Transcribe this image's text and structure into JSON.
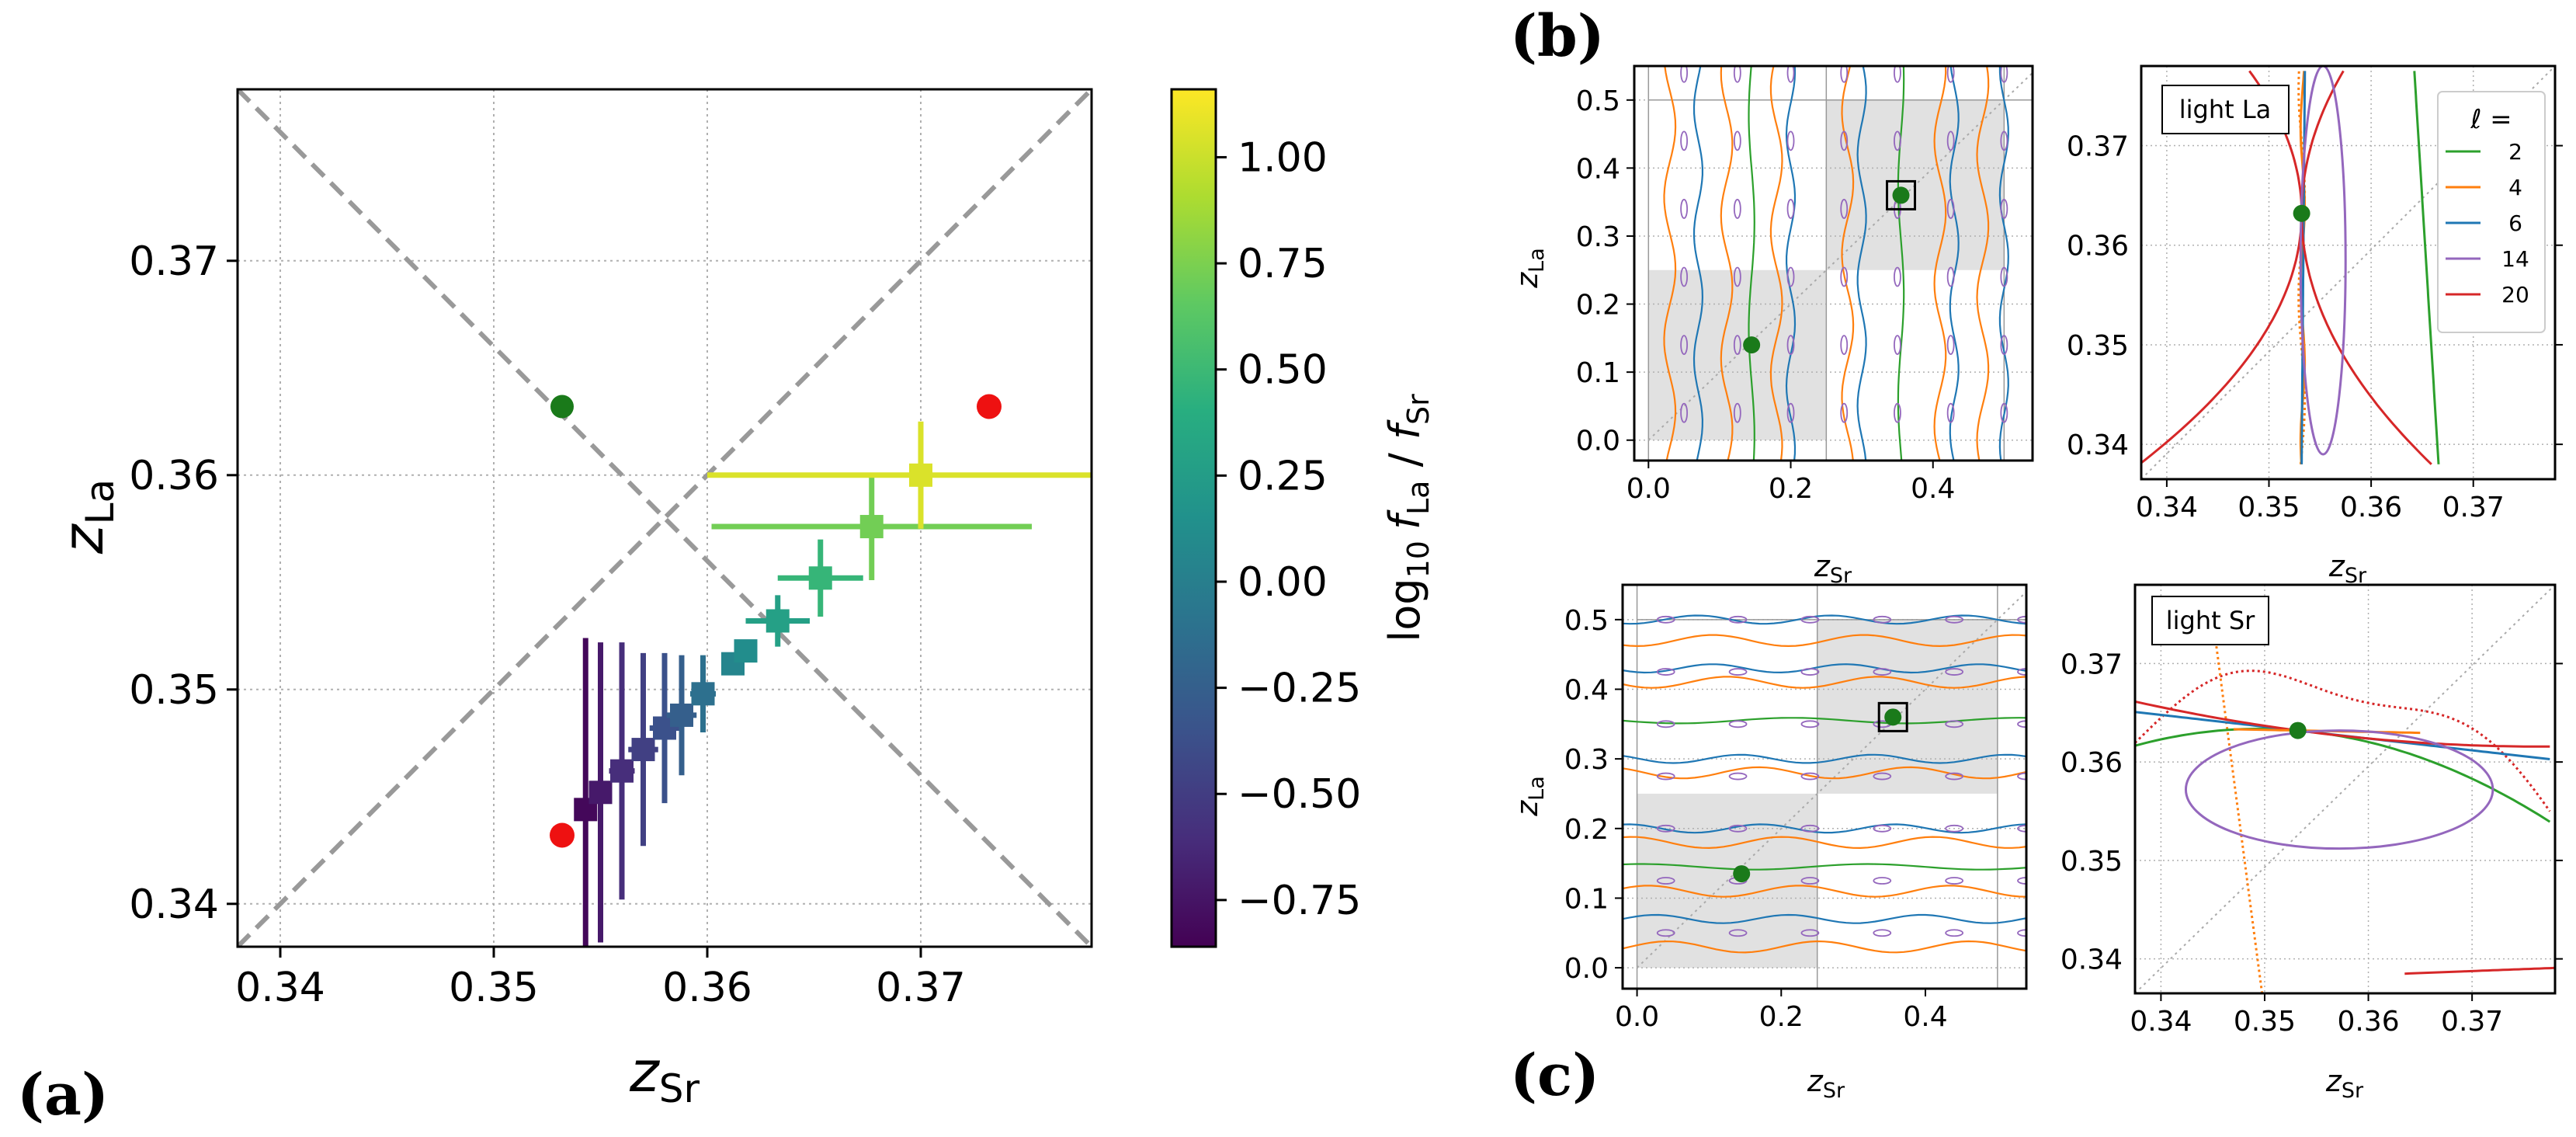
{
  "chart_data": [
    {
      "id": "a",
      "type": "scatter",
      "panel_label": "(a)",
      "xlabel": {
        "base": "z",
        "sub": "Sr"
      },
      "ylabel": {
        "base": "z",
        "sub": "La"
      },
      "xlim": [
        0.338,
        0.378
      ],
      "ylim": [
        0.338,
        0.378
      ],
      "xticks": [
        "0.34",
        "0.35",
        "0.36",
        "0.37"
      ],
      "yticks": [
        "0.34",
        "0.35",
        "0.36",
        "0.37"
      ],
      "grid": true,
      "points_with_errorbars": [
        {
          "x": 0.3543,
          "y": 0.3444,
          "xerr": 0.0003,
          "yerr": 0.008,
          "c": -0.82
        },
        {
          "x": 0.355,
          "y": 0.3452,
          "xerr": 0.0005,
          "yerr": 0.007,
          "c": -0.72
        },
        {
          "x": 0.356,
          "y": 0.3462,
          "xerr": 0.0006,
          "yerr": 0.006,
          "c": -0.6
        },
        {
          "x": 0.357,
          "y": 0.3472,
          "xerr": 0.0007,
          "yerr": 0.0045,
          "c": -0.48
        },
        {
          "x": 0.358,
          "y": 0.3482,
          "xerr": 0.0007,
          "yerr": 0.0035,
          "c": -0.36
        },
        {
          "x": 0.3588,
          "y": 0.3488,
          "xerr": 0.0007,
          "yerr": 0.0028,
          "c": -0.25
        },
        {
          "x": 0.3598,
          "y": 0.3498,
          "xerr": 0.0006,
          "yerr": 0.0018,
          "c": -0.12
        },
        {
          "x": 0.3612,
          "y": 0.3512,
          "xerr": 0.0005,
          "yerr": 0.0005,
          "c": 0.05
        },
        {
          "x": 0.3618,
          "y": 0.3518,
          "xerr": 0.0005,
          "yerr": 0.0005,
          "c": 0.12
        },
        {
          "x": 0.3633,
          "y": 0.3532,
          "xerr": 0.0015,
          "yerr": 0.0012,
          "c": 0.28
        },
        {
          "x": 0.3653,
          "y": 0.3552,
          "xerr": 0.002,
          "yerr": 0.0018,
          "c": 0.47
        },
        {
          "x": 0.3677,
          "y": 0.3576,
          "xerr": 0.0075,
          "yerr": 0.0025,
          "c": 0.72
        },
        {
          "x": 0.37,
          "y": 0.36,
          "xerr": 0.01,
          "yerr": 0.0025,
          "c": 1.05
        }
      ],
      "red_points": [
        {
          "x": 0.3532,
          "y": 0.3432
        },
        {
          "x": 0.3732,
          "y": 0.3632
        }
      ],
      "green_points": [
        {
          "x": 0.3532,
          "y": 0.3632
        }
      ],
      "dashed_lines": [
        {
          "from": [
            0.338,
            0.338
          ],
          "to": [
            0.378,
            0.378
          ]
        },
        {
          "from": [
            0.338,
            0.378
          ],
          "to": [
            0.378,
            0.338
          ]
        }
      ],
      "colorbar": {
        "label": {
          "prefix": "log",
          "prefix_sub": "10",
          "num": "f",
          "num_sub": "La",
          "den": "f",
          "den_sub": "Sr"
        },
        "range": [
          -0.86,
          1.16
        ],
        "ticks": [
          -0.75,
          -0.5,
          -0.25,
          0.0,
          0.25,
          0.5,
          0.75,
          1.0
        ],
        "tick_labels": [
          "−0.75",
          "−0.50",
          "−0.25",
          "0.00",
          "0.25",
          "0.50",
          "0.75",
          "1.00"
        ],
        "colormap": "viridis"
      }
    },
    {
      "id": "b-left",
      "type": "line",
      "panel_label": "(b)",
      "xlabel": {
        "base": "z",
        "sub": "Sr"
      },
      "ylabel": {
        "base": "z",
        "sub": "La"
      },
      "xlim": [
        -0.02,
        0.54
      ],
      "ylim": [
        -0.03,
        0.55
      ],
      "xticks": [
        "0.0",
        "0.2",
        "0.4"
      ],
      "yticks": [
        "0.0",
        "0.1",
        "0.2",
        "0.3",
        "0.4",
        "0.5"
      ],
      "green_points": [
        {
          "x": 0.145,
          "y": 0.14
        },
        {
          "x": 0.355,
          "y": 0.36
        }
      ],
      "shaded_regions": [
        {
          "x": [
            0,
            0.25
          ],
          "y": [
            0,
            0.25
          ]
        },
        {
          "x": [
            0.25,
            0.5
          ],
          "y": [
            0.25,
            0.5
          ]
        }
      ]
    },
    {
      "id": "b-right",
      "type": "line",
      "annotation": "light La",
      "xlabel": {
        "base": "z",
        "sub": "Sr"
      },
      "xlim": [
        0.3375,
        0.378
      ],
      "ylim": [
        0.3365,
        0.378
      ],
      "xticks": [
        "0.34",
        "0.35",
        "0.36",
        "0.37"
      ],
      "yticks": [
        "0.34",
        "0.35",
        "0.36",
        "0.37"
      ],
      "green_points": [
        {
          "x": 0.3532,
          "y": 0.3632
        }
      ],
      "legend": {
        "title": "ℓ =",
        "position": "top-right",
        "entries": [
          {
            "label": "2",
            "color": "#2ca02c"
          },
          {
            "label": "4",
            "color": "#ff7f0e"
          },
          {
            "label": "6",
            "color": "#1f77b4"
          },
          {
            "label": "14",
            "color": "#9467bd"
          },
          {
            "label": "20",
            "color": "#d62728"
          }
        ]
      }
    },
    {
      "id": "c-left",
      "type": "line",
      "panel_label": "(c)",
      "xlabel": {
        "base": "z",
        "sub": "Sr"
      },
      "ylabel": {
        "base": "z",
        "sub": "La"
      },
      "xlim": [
        -0.02,
        0.54
      ],
      "ylim": [
        -0.03,
        0.55
      ],
      "xticks": [
        "0.0",
        "0.2",
        "0.4"
      ],
      "yticks": [
        "0.0",
        "0.1",
        "0.2",
        "0.3",
        "0.4",
        "0.5"
      ],
      "green_points": [
        {
          "x": 0.145,
          "y": 0.135
        },
        {
          "x": 0.355,
          "y": 0.36
        }
      ],
      "shaded_regions": [
        {
          "x": [
            0,
            0.25
          ],
          "y": [
            0,
            0.25
          ]
        },
        {
          "x": [
            0.25,
            0.5
          ],
          "y": [
            0.25,
            0.5
          ]
        }
      ]
    },
    {
      "id": "c-right",
      "type": "line",
      "annotation": "light Sr",
      "xlabel": {
        "base": "z",
        "sub": "Sr"
      },
      "xlim": [
        0.3375,
        0.378
      ],
      "ylim": [
        0.3365,
        0.378
      ],
      "xticks": [
        "0.34",
        "0.35",
        "0.36",
        "0.37"
      ],
      "yticks": [
        "0.34",
        "0.35",
        "0.36",
        "0.37"
      ],
      "green_points": [
        {
          "x": 0.3532,
          "y": 0.3632
        }
      ]
    }
  ],
  "colors": {
    "green_point": "#1a7a1a",
    "red_point": "#ee1111",
    "l2": "#2ca02c",
    "l4": "#ff7f0e",
    "l6": "#1f77b4",
    "l14": "#9467bd",
    "l20": "#d62728",
    "shade": "#d9d9d9",
    "grid": "#b0b0b0",
    "dashed": "#999999"
  }
}
